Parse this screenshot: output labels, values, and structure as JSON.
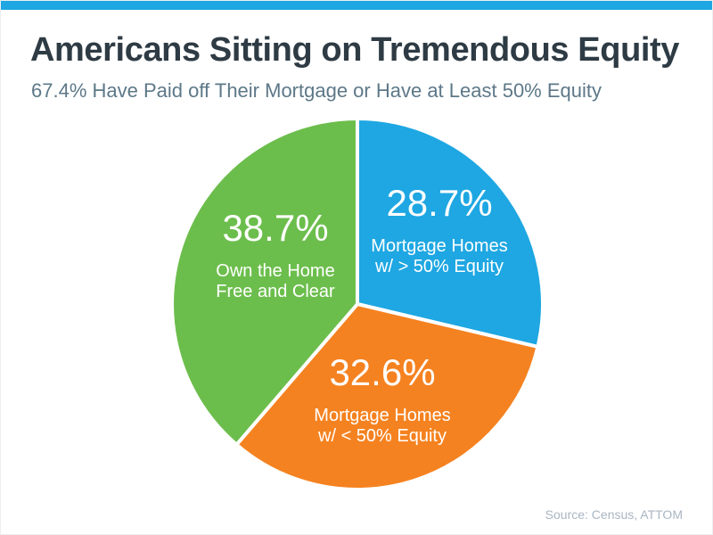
{
  "page": {
    "title": "Americans Sitting on Tremendous Equity",
    "subtitle": "67.4% Have Paid off Their Mortgage or Have at Least 50% Equity",
    "source": "Source: Census, ATTOM",
    "accent_bar_color": "#1ea7e2"
  },
  "chart_data": {
    "type": "pie",
    "title": "Americans Sitting on Tremendous Equity",
    "subtitle": "67.4% Have Paid off Their Mortgage or Have at Least 50% Equity",
    "source": "Source: Census, ATTOM",
    "start_angle_deg": 0,
    "direction": "clockwise",
    "donut": false,
    "slice_gap_color": "#ffffff",
    "slices": [
      {
        "id": "mortgage-gt50",
        "label": "Mortgage Homes w/ > 50% Equity",
        "value": 28.7,
        "pct": "28.7%",
        "line1": "Mortgage Homes",
        "line2": "w/ > 50% Equity",
        "color": "#1ea7e2"
      },
      {
        "id": "mortgage-lt50",
        "label": "Mortgage Homes w/ < 50% Equity",
        "value": 32.6,
        "pct": "32.6%",
        "line1": "Mortgage Homes",
        "line2": "w/ < 50% Equity",
        "color": "#f58220"
      },
      {
        "id": "free-and-clear",
        "label": "Own the Home Free and Clear",
        "value": 38.7,
        "pct": "38.7%",
        "line1": "Own the Home",
        "line2": "Free and Clear",
        "color": "#6cbe4c"
      }
    ]
  }
}
